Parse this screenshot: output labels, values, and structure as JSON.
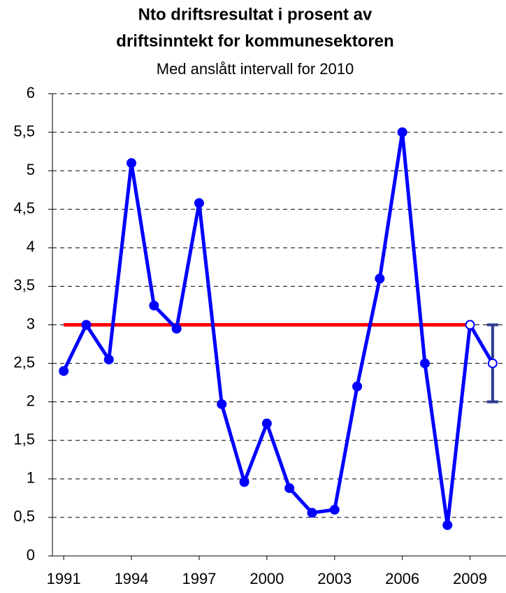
{
  "chart_data": {
    "type": "line",
    "title": [
      "Nto driftsresultat i prosent av",
      "driftsinntekt for kommunesektoren"
    ],
    "subtitle": "Med anslått intervall for 2010",
    "x": [
      1991,
      1992,
      1993,
      1994,
      1995,
      1996,
      1997,
      1998,
      1999,
      2000,
      2001,
      2002,
      2003,
      2004,
      2005,
      2006,
      2007,
      2008,
      2009,
      2010
    ],
    "values": [
      2.4,
      3.0,
      2.55,
      5.1,
      3.25,
      2.95,
      4.58,
      1.97,
      0.96,
      1.72,
      0.88,
      0.56,
      0.6,
      2.2,
      3.6,
      5.5,
      2.5,
      0.4,
      3.0,
      2.5
    ],
    "color": "#0000ff",
    "open_markers_x": [
      2009,
      2010
    ],
    "reference_line": {
      "value": 3,
      "x": [
        1991,
        2009
      ],
      "color": "#ff0000"
    },
    "interval": {
      "x": 2010,
      "low": 2,
      "high": 3,
      "color": "#2b3a8f"
    },
    "xlim": [
      1990.5,
      2010.5
    ],
    "xticks": [
      1991,
      1994,
      1997,
      2000,
      2003,
      2006,
      2009
    ],
    "ylim": [
      0,
      6
    ],
    "yticks": [
      0,
      {
        "value": 0.5,
        "label": "0,5"
      },
      1,
      {
        "value": 1.5,
        "label": "1,5"
      },
      2,
      {
        "value": 2.5,
        "label": "2,5"
      },
      3,
      {
        "value": 3.5,
        "label": "3,5"
      },
      4,
      {
        "value": 4.5,
        "label": "4,5"
      },
      5,
      {
        "value": 5.5,
        "label": "5,5"
      },
      6
    ],
    "grid": true
  }
}
